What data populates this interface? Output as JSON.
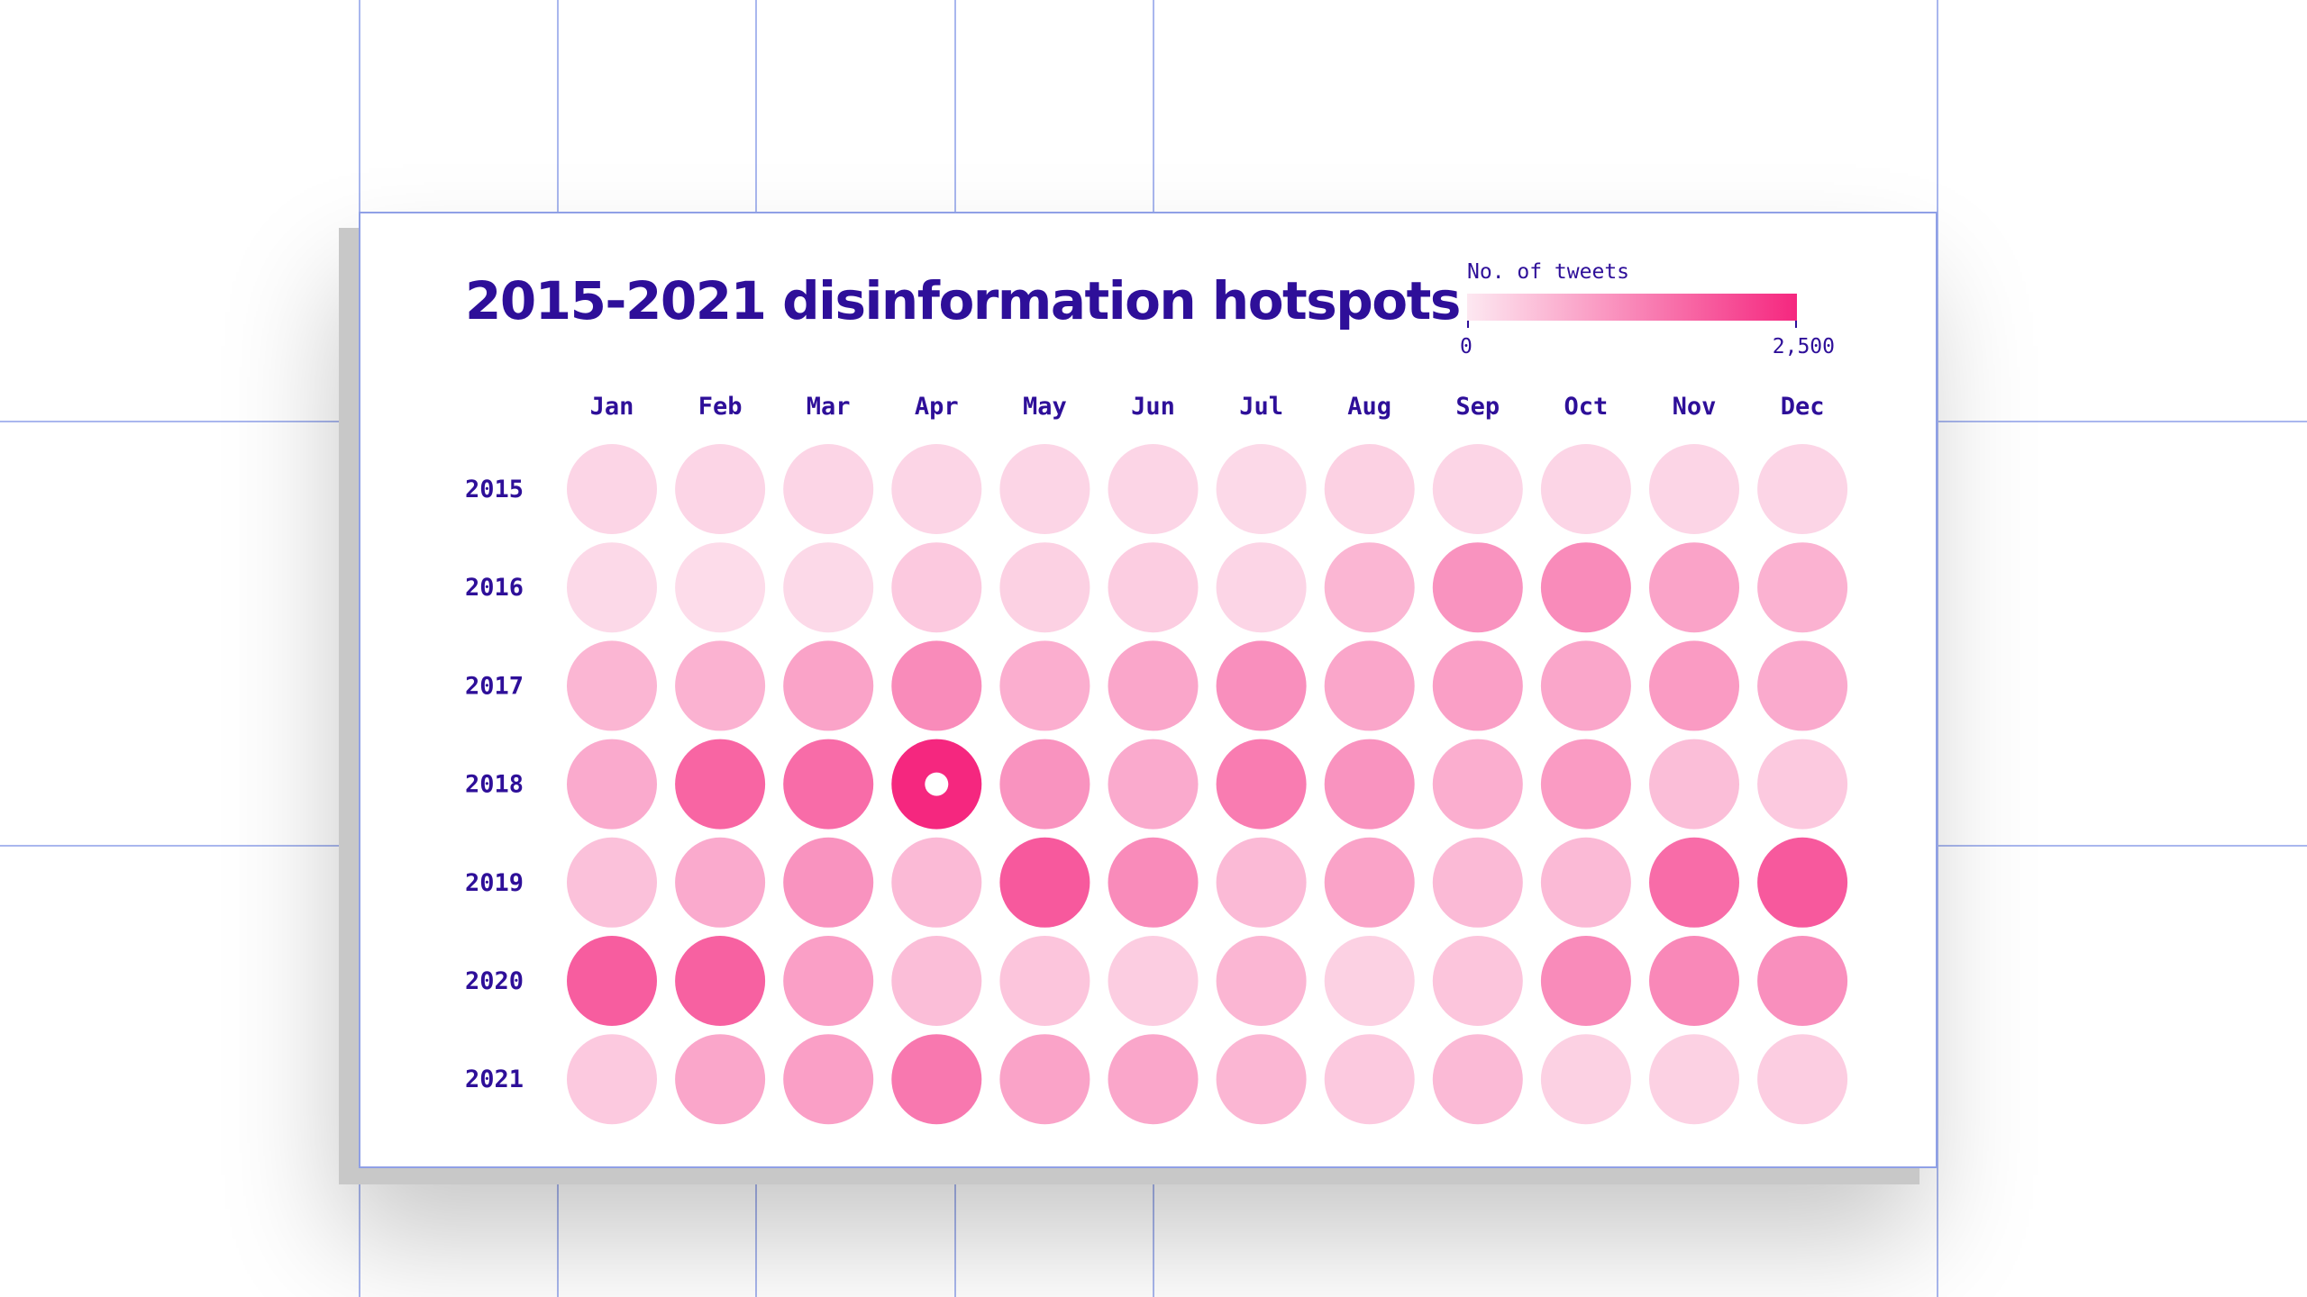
{
  "chart_data": {
    "type": "heatmap",
    "title": "2015-2021 disinformation hotspots",
    "legend": {
      "label": "No. of tweets",
      "min_label": "0",
      "max_label": "2,500",
      "min": 0,
      "max": 2500
    },
    "months": [
      "Jan",
      "Feb",
      "Mar",
      "Apr",
      "May",
      "Jun",
      "Jul",
      "Aug",
      "Sep",
      "Oct",
      "Nov",
      "Dec"
    ],
    "years": [
      "2015",
      "2016",
      "2017",
      "2018",
      "2019",
      "2020",
      "2021"
    ],
    "values": [
      [
        250,
        250,
        250,
        250,
        250,
        250,
        200,
        300,
        250,
        250,
        250,
        250
      ],
      [
        200,
        150,
        200,
        400,
        300,
        350,
        250,
        650,
        1100,
        1200,
        900,
        700
      ],
      [
        650,
        700,
        900,
        1200,
        750,
        850,
        1150,
        850,
        950,
        850,
        1000,
        800
      ],
      [
        800,
        1700,
        1600,
        2500,
        1100,
        800,
        1400,
        1100,
        750,
        1000,
        550,
        400
      ],
      [
        500,
        800,
        1100,
        600,
        1850,
        1200,
        600,
        900,
        600,
        600,
        1600,
        1850
      ],
      [
        1800,
        1750,
        950,
        550,
        450,
        350,
        650,
        300,
        450,
        1200,
        1250,
        1150
      ],
      [
        400,
        850,
        950,
        1450,
        900,
        850,
        650,
        400,
        600,
        300,
        300,
        350
      ]
    ],
    "highlight": {
      "year": "2018",
      "month": "Apr"
    },
    "colors": {
      "low": "#fde8f1",
      "high": "#f5277f",
      "text": "#2e0f99",
      "highlight_dot": "#ffffff"
    }
  }
}
